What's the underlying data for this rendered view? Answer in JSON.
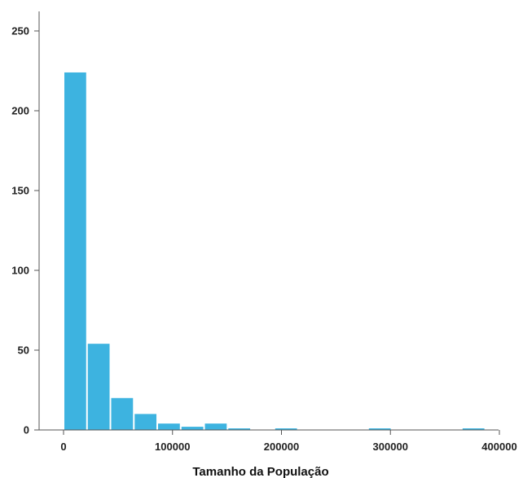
{
  "chart_data": {
    "type": "bar",
    "title": "",
    "xlabel": "Tamanho da População",
    "ylabel": "",
    "xlim": [
      0,
      400000
    ],
    "ylim": [
      0,
      260
    ],
    "x_ticks": [
      0,
      100000,
      200000,
      300000,
      400000
    ],
    "x_tick_labels": [
      "0",
      "100000",
      "200000",
      "300000",
      "400000"
    ],
    "y_ticks": [
      0,
      50,
      100,
      150,
      200,
      250
    ],
    "y_tick_labels": [
      "0",
      "50",
      "100",
      "150",
      "200",
      "250"
    ],
    "bin_width": 21500,
    "bins": [
      {
        "start": 0,
        "end": 21500,
        "count": 224
      },
      {
        "start": 21500,
        "end": 43000,
        "count": 54
      },
      {
        "start": 43000,
        "end": 64500,
        "count": 20
      },
      {
        "start": 64500,
        "end": 86000,
        "count": 10
      },
      {
        "start": 86000,
        "end": 107500,
        "count": 4
      },
      {
        "start": 107500,
        "end": 129000,
        "count": 2
      },
      {
        "start": 129000,
        "end": 150500,
        "count": 4
      },
      {
        "start": 150500,
        "end": 172000,
        "count": 1
      },
      {
        "start": 172000,
        "end": 193500,
        "count": 0
      },
      {
        "start": 193500,
        "end": 215000,
        "count": 1
      },
      {
        "start": 215000,
        "end": 236500,
        "count": 0
      },
      {
        "start": 236500,
        "end": 258000,
        "count": 0
      },
      {
        "start": 258000,
        "end": 279500,
        "count": 0
      },
      {
        "start": 279500,
        "end": 301000,
        "count": 1
      },
      {
        "start": 301000,
        "end": 322500,
        "count": 0
      },
      {
        "start": 322500,
        "end": 344000,
        "count": 0
      },
      {
        "start": 344000,
        "end": 365500,
        "count": 0
      },
      {
        "start": 365500,
        "end": 387000,
        "count": 1
      }
    ],
    "grid": false,
    "bar_color": "#3db3e0",
    "axis_color": "#555555"
  }
}
